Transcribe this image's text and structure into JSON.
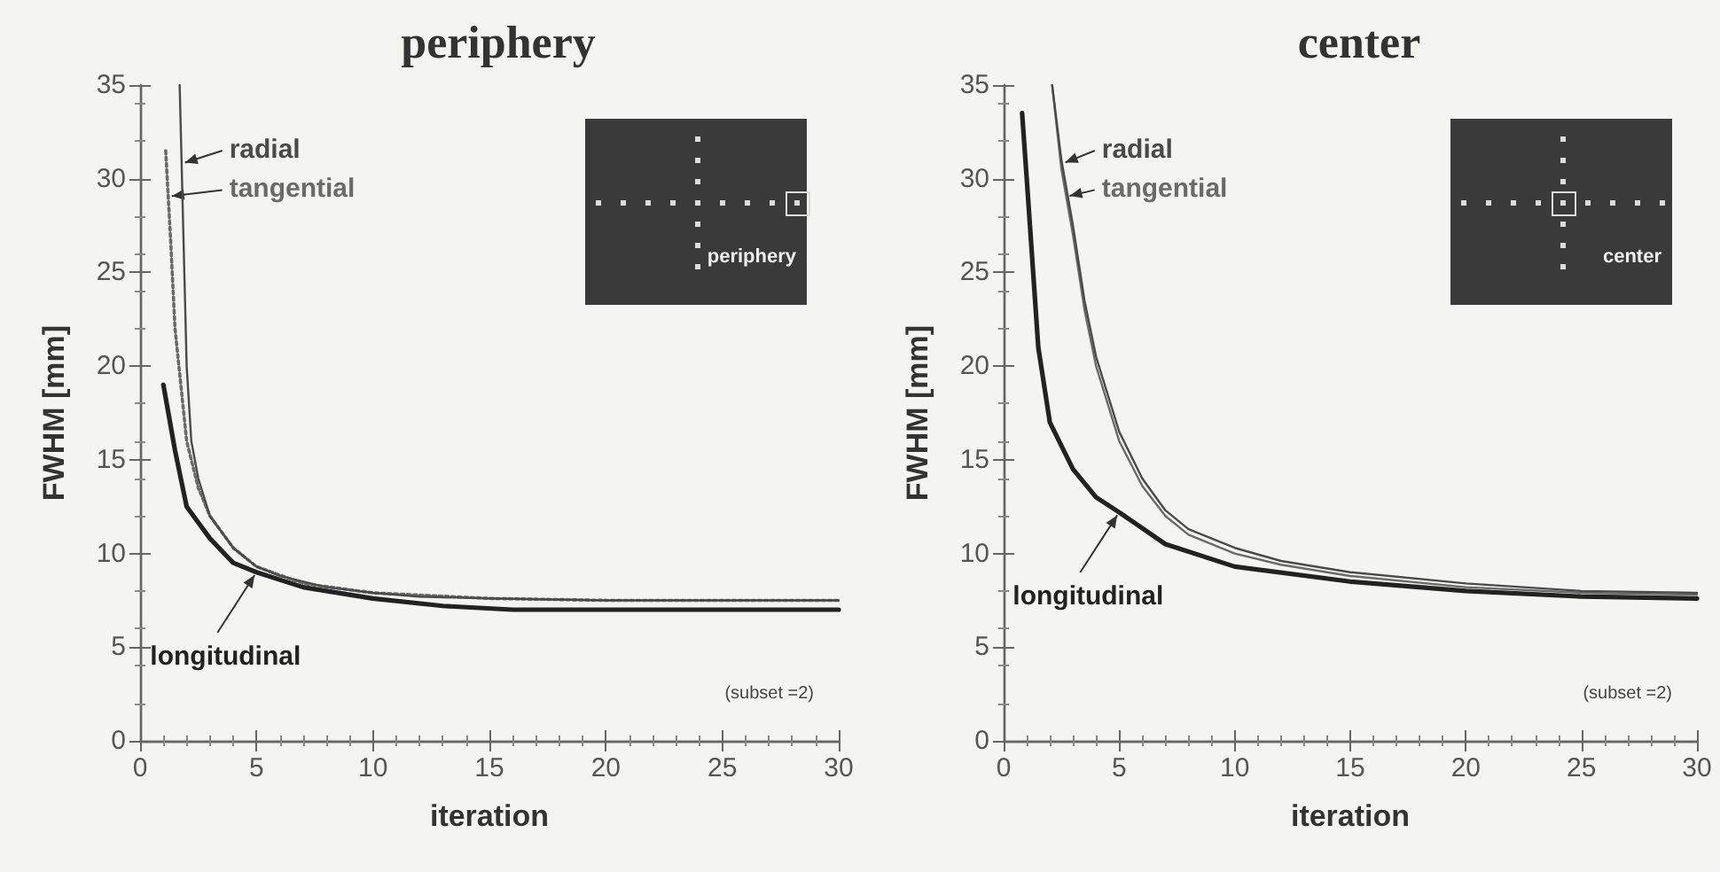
{
  "chart_data": [
    {
      "type": "line",
      "title": "periphery",
      "xlabel": "iteration",
      "ylabel": "FWHM [mm]",
      "xlim": [
        0,
        30
      ],
      "ylim": [
        0,
        35
      ],
      "xticks": [
        0,
        5,
        10,
        15,
        20,
        25,
        30
      ],
      "yticks": [
        0,
        5,
        10,
        15,
        20,
        25,
        30,
        35
      ],
      "grid": false,
      "legend": false,
      "marker": "none",
      "annotations": [
        "(subset =2)",
        "periphery"
      ],
      "series": [
        {
          "name": "radial",
          "color": "#4a4a4a",
          "line_style": "solid",
          "x": [
            1.7,
            1.8,
            1.9,
            2.0,
            2.2,
            2.5,
            3,
            4,
            5,
            6,
            8,
            10,
            12,
            15,
            20,
            25,
            30
          ],
          "values": [
            35,
            30,
            25,
            20,
            16,
            14,
            12,
            10.3,
            9.3,
            8.8,
            8.2,
            7.9,
            7.7,
            7.6,
            7.5,
            7.5,
            7.5
          ]
        },
        {
          "name": "tangential",
          "color": "#6a6a6a",
          "line_style": "dotted",
          "x": [
            1.1,
            1.3,
            1.5,
            1.75,
            2.0,
            2.5,
            3,
            4,
            5,
            7,
            10,
            15,
            20,
            30
          ],
          "values": [
            31.5,
            27,
            22,
            19,
            16,
            13.5,
            12,
            10.3,
            9.3,
            8.4,
            7.9,
            7.6,
            7.5,
            7.5
          ]
        },
        {
          "name": "longitudinal",
          "color": "#222222",
          "line_style": "solid",
          "x": [
            1,
            1.5,
            2,
            3,
            4,
            5,
            7,
            10,
            13,
            16,
            20,
            30
          ],
          "values": [
            19,
            15.5,
            12.5,
            10.8,
            9.5,
            9,
            8.2,
            7.6,
            7.2,
            7.0,
            7.0,
            7.0
          ]
        }
      ]
    },
    {
      "type": "line",
      "title": "center",
      "xlabel": "iteration",
      "ylabel": "FWHM [mm]",
      "xlim": [
        0,
        30
      ],
      "ylim": [
        0,
        35
      ],
      "xticks": [
        0,
        5,
        10,
        15,
        20,
        25,
        30
      ],
      "yticks": [
        0,
        5,
        10,
        15,
        20,
        25,
        30,
        35
      ],
      "grid": false,
      "legend": false,
      "marker": "none",
      "annotations": [
        "(subset =2)",
        "center"
      ],
      "series": [
        {
          "name": "radial",
          "color": "#4a4a4a",
          "line_style": "solid",
          "x": [
            2.1,
            2.5,
            3,
            3.5,
            4,
            5,
            6,
            7,
            8,
            10,
            12,
            15,
            20,
            25,
            30
          ],
          "values": [
            35,
            31,
            27.5,
            23.5,
            20.5,
            16.5,
            14,
            12.3,
            11.3,
            10.3,
            9.6,
            9,
            8.4,
            8.0,
            7.9
          ]
        },
        {
          "name": "tangential",
          "color": "#6a6a6a",
          "line_style": "solid",
          "x": [
            2.1,
            2.5,
            3,
            3.5,
            4,
            5,
            6,
            7,
            8,
            10,
            12,
            15,
            20,
            25,
            30
          ],
          "values": [
            35,
            30.5,
            27,
            23,
            20,
            16,
            13.6,
            12,
            11,
            10,
            9.4,
            8.8,
            8.2,
            7.9,
            7.8
          ]
        },
        {
          "name": "longitudinal",
          "color": "#222222",
          "line_style": "solid",
          "x": [
            0.8,
            1,
            1.5,
            2,
            3,
            4,
            5,
            7,
            10,
            15,
            20,
            25,
            30
          ],
          "values": [
            33.5,
            30,
            21,
            17,
            14.5,
            13,
            12.2,
            10.5,
            9.3,
            8.5,
            8.0,
            7.7,
            7.6
          ]
        }
      ]
    }
  ]
}
